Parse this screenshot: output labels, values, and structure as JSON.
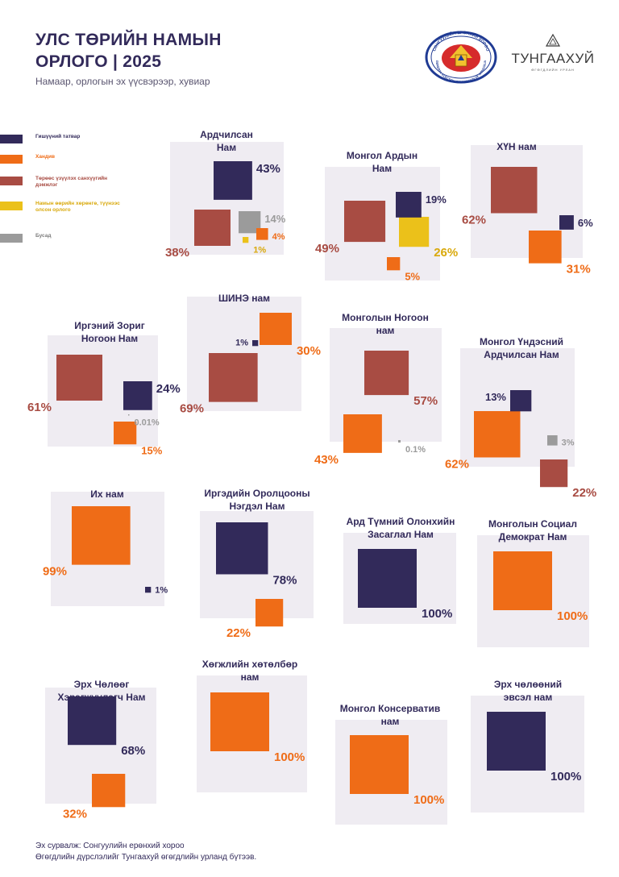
{
  "header": {
    "title_line1": "УЛС ТӨРИЙН НАМЫН",
    "title_line2": "ОРЛОГО | 2025",
    "subtitle": "Намаар, орлогын эх үүсвэрээр, хувиар"
  },
  "logos": {
    "seal_name": "election-commission-seal",
    "seal_text_top": "СОНГУУЛИЙН ЕРӨНХИЙ ХОРОО",
    "seal_text_bottom": "GENERAL ELECTION COMMISSION OF MONGOLIA",
    "brand_name": "ТУНГААХУЙ",
    "brand_tagline": "ӨГӨГДЛИЙН УРЛАН"
  },
  "colors": {
    "dues": "#322a5a",
    "donations": "#ef6c17",
    "state_support": "#a84c43",
    "own_activity": "#ebc11a",
    "other": "#9b9b9b",
    "panel": "#efecf2",
    "title": "#322a5a"
  },
  "legend": [
    {
      "key": "dues",
      "label": "Гишүүний татвар"
    },
    {
      "key": "donations",
      "label": "Хандив"
    },
    {
      "key": "state_support",
      "label": "Төрөөс үзүүлэх санхүүгийн дэмжлэг"
    },
    {
      "key": "own_activity",
      "label": "Намын өөрийн хөрөнгө, түүнээс олсон орлого"
    },
    {
      "key": "other",
      "label": "Бусад"
    }
  ],
  "chart_data": {
    "type": "proportional-area",
    "unit": "%",
    "parties": [
      {
        "name": "Ардчилсан Нам",
        "values": {
          "dues": 43,
          "state_support": 38,
          "other": 14,
          "donations": 4,
          "own_activity": 1
        }
      },
      {
        "name": "Монгол Ардын Нам",
        "values": {
          "state_support": 49,
          "own_activity": 26,
          "dues": 19,
          "donations": 5
        }
      },
      {
        "name": "ХҮН нам",
        "values": {
          "state_support": 62,
          "donations": 31,
          "dues": 6
        }
      },
      {
        "name": "Иргэний Зориг Ногоон Нам",
        "values": {
          "state_support": 61,
          "dues": 24,
          "donations": 15,
          "other": 0.01
        }
      },
      {
        "name": "ШИНЭ нам",
        "values": {
          "state_support": 69,
          "donations": 30,
          "dues": 1
        }
      },
      {
        "name": "Монголын Ногоон нам",
        "values": {
          "state_support": 57,
          "donations": 43,
          "other": 0.1
        }
      },
      {
        "name": "Монгол Үндэсний Ардчилсан Нам",
        "values": {
          "donations": 62,
          "state_support": 22,
          "dues": 13,
          "other": 3
        }
      },
      {
        "name": "Их нам",
        "values": {
          "donations": 99,
          "dues": 1
        }
      },
      {
        "name": "Иргэдийн Оролцооны Нэгдэл Нам",
        "values": {
          "dues": 78,
          "donations": 22
        }
      },
      {
        "name": "Ард Түмний Олонхийн Засаглал Нам",
        "values": {
          "dues": 100
        }
      },
      {
        "name": "Монголын Социал Демократ Нам",
        "values": {
          "donations": 100
        }
      },
      {
        "name": "Эрх Чөлөөг Хэрэгжүүлэгч Нам",
        "values": {
          "dues": 68,
          "donations": 32
        }
      },
      {
        "name": "Хөгжлийн хөтөлбөр нам",
        "values": {
          "donations": 100
        }
      },
      {
        "name": "Монгол Консерватив нам",
        "values": {
          "donations": 100
        }
      },
      {
        "name": "Эрх чөлөөний эвсэл нам",
        "values": {
          "dues": 100
        }
      }
    ],
    "value_labels": {
      "Ардчилсан Нам": {
        "dues": "43%",
        "state_support": "38%",
        "other": "14%",
        "donations": "4%",
        "own_activity": "1%"
      },
      "Монгол Ардын Нам": {
        "state_support": "49%",
        "own_activity": "26%",
        "dues": "19%",
        "donations": "5%"
      },
      "ХҮН нам": {
        "state_support": "62%",
        "donations": "31%",
        "dues": "6%"
      },
      "Иргэний Зориг Ногоон Нам": {
        "state_support": "61%",
        "dues": "24%",
        "donations": "15%",
        "other": "0.01%"
      },
      "ШИНЭ нам": {
        "state_support": "69%",
        "donations": "30%",
        "dues": "1%"
      },
      "Монголын Ногоон нам": {
        "state_support": "57%",
        "donations": "43%",
        "other": "0.1%"
      },
      "Монгол Үндэсний Ардчилсан Нам": {
        "donations": "62%",
        "state_support": "22%",
        "dues": "13%",
        "other": "3%"
      },
      "Их нам": {
        "donations": "99%",
        "dues": "1%"
      },
      "Иргэдийн Оролцооны Нэгдэл Нам": {
        "dues": "78%",
        "donations": "22%"
      },
      "Ард Түмний Олонхийн Засаглал Нам": {
        "dues": "100%"
      },
      "Монголын Социал Демократ Нам": {
        "donations": "100%"
      },
      "Эрх Чөлөөг Хэрэгжүүлэгч Нам": {
        "dues": "68%",
        "donations": "32%"
      },
      "Хөгжлийн хөтөлбөр нам": {
        "donations": "100%"
      },
      "Монгол Консерватив нам": {
        "donations": "100%"
      },
      "Эрх чөлөөний эвсэл нам": {
        "dues": "100%"
      }
    }
  },
  "footer": {
    "source": "Эх сурвалж: Сонгуулийн ерөнхий хороо",
    "credit": "Өгөгдлийн дүрслэлийг Тунгаахуй өгөгдлийн урланд бүтээв."
  }
}
